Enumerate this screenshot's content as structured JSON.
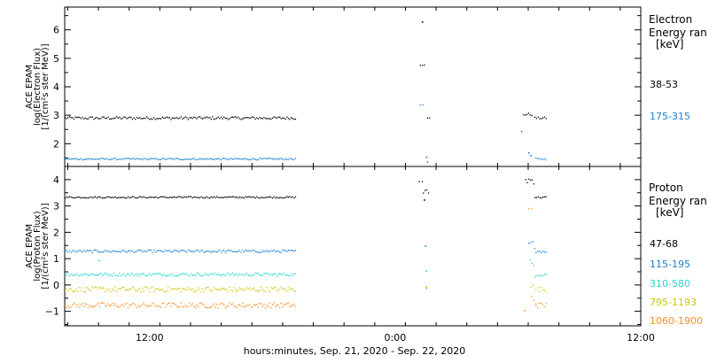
{
  "chart_data": [
    {
      "type": "scatter",
      "panel": "electron",
      "ylabel_lines": [
        "ACE EPAM",
        "log(Electron Flux)",
        "[1/(cm²s ster MeV)]"
      ],
      "yticks": [
        2,
        3,
        4,
        5,
        6
      ],
      "ylim": [
        1.2,
        6.8
      ],
      "legend_title": [
        "Electron",
        "Energy ran",
        "[keV]"
      ],
      "series": [
        {
          "name": "38-53",
          "color": "#000000",
          "segments": [
            {
              "x": [
                0,
                22.5
              ],
              "y": 2.92,
              "jitter": 0.05
            },
            {
              "x": [
                34.7,
                35.1
              ],
              "y": 4.78,
              "jitter": 0.01
            },
            {
              "x": [
                35.4,
                35.6
              ],
              "y": 2.9,
              "jitter": 0.05
            },
            {
              "x": [
                44.8,
                45.6
              ],
              "y": 3.05,
              "jitter": 0.05
            },
            {
              "x": [
                45.9,
                47.0
              ],
              "y": 2.92,
              "jitter": 0.04
            }
          ],
          "points": [
            [
              34.9,
              6.3
            ]
          ]
        },
        {
          "name": "175-315",
          "color": "#1a7fd4",
          "segments": [
            {
              "x": [
                0,
                22.5
              ],
              "y": 1.48,
              "jitter": 0.03
            },
            {
              "x": [
                34.7,
                34.95
              ],
              "y": 3.38,
              "jitter": 0.02
            },
            {
              "x": [
                46.0,
                47.0
              ],
              "y": 1.48,
              "jitter": 0.03
            }
          ],
          "points": [
            [
              35.3,
              1.55
            ],
            [
              35.4,
              1.38
            ],
            [
              44.6,
              2.45
            ],
            [
              45.3,
              1.7
            ],
            [
              45.5,
              1.6
            ]
          ]
        }
      ]
    },
    {
      "type": "scatter",
      "panel": "proton",
      "ylabel_lines": [
        "ACE EPAM",
        "log(Proton Flux)",
        "[1/(cm²s ster MeV)]"
      ],
      "yticks": [
        -1,
        0,
        1,
        2,
        3,
        4
      ],
      "ylim": [
        -1.55,
        4.5
      ],
      "legend_title": [
        "Proton",
        "Energy ran",
        "[keV]"
      ],
      "series": [
        {
          "name": "47-68",
          "color": "#000000",
          "segments": [
            {
              "x": [
                0,
                22.5
              ],
              "y": 3.35,
              "jitter": 0.03
            },
            {
              "x": [
                34.6,
                34.9
              ],
              "y": 3.95,
              "jitter": 0.03
            },
            {
              "x": [
                35.0,
                35.5
              ],
              "y": 3.55,
              "jitter": 0.1
            },
            {
              "x": [
                45.0,
                45.8
              ],
              "y": 4.0,
              "jitter": 0.15
            },
            {
              "x": [
                45.9,
                47.0
              ],
              "y": 3.35,
              "jitter": 0.03
            }
          ],
          "points": [
            [
              35.1,
              3.25
            ]
          ]
        },
        {
          "name": "115-195",
          "color": "#1a7fd4",
          "segments": [
            {
              "x": [
                0,
                22.5
              ],
              "y": 1.3,
              "jitter": 0.05
            },
            {
              "x": [
                45.3,
                45.9
              ],
              "y": 1.55,
              "jitter": 0.15
            },
            {
              "x": [
                46.0,
                47.0
              ],
              "y": 1.3,
              "jitter": 0.05
            }
          ],
          "points": [
            [
              35.2,
              1.5
            ]
          ]
        },
        {
          "name": "310-580",
          "color": "#22d3d3",
          "segments": [
            {
              "x": [
                0,
                22.5
              ],
              "y": 0.42,
              "jitter": 0.06
            },
            {
              "x": [
                45.4,
                45.8
              ],
              "y": 0.8,
              "jitter": 0.2
            },
            {
              "x": [
                46.0,
                47.0
              ],
              "y": 0.42,
              "jitter": 0.06
            }
          ],
          "points": [
            [
              35.3,
              0.55
            ],
            [
              3.3,
              0.95
            ]
          ]
        },
        {
          "name": "795-1193",
          "color": "#c8c800",
          "segments": [
            {
              "x": [
                0,
                22.5
              ],
              "y": -0.15,
              "jitter": 0.1
            },
            {
              "x": [
                45.5,
                45.9
              ],
              "y": 0.15,
              "jitter": 0.25
            },
            {
              "x": [
                46.0,
                47.0
              ],
              "y": -0.15,
              "jitter": 0.1
            }
          ],
          "points": [
            [
              35.3,
              -0.05
            ]
          ]
        },
        {
          "name": "1060-1900",
          "color": "#ff8c1a",
          "segments": [
            {
              "x": [
                0,
                22.5
              ],
              "y": -0.75,
              "jitter": 0.1
            },
            {
              "x": [
                45.3,
                45.6
              ],
              "y": 2.9,
              "jitter": 0.05
            },
            {
              "x": [
                45.6,
                46.0
              ],
              "y": -0.55,
              "jitter": 0.25
            },
            {
              "x": [
                46.0,
                47.0
              ],
              "y": -0.75,
              "jitter": 0.1
            }
          ],
          "points": [
            [
              35.3,
              -0.1
            ],
            [
              44.9,
              -0.95
            ]
          ]
        }
      ]
    }
  ],
  "xaxis": {
    "xlim": [
      0,
      56.3
    ],
    "major_ticks": [
      {
        "x": 8.3,
        "label": "12:00"
      },
      {
        "x": 32.3,
        "label": "0:00"
      },
      {
        "x": 56.3,
        "label": "12:00"
      }
    ],
    "label": "hours:minutes, Sep. 21, 2020 - Sep. 22, 2020"
  }
}
